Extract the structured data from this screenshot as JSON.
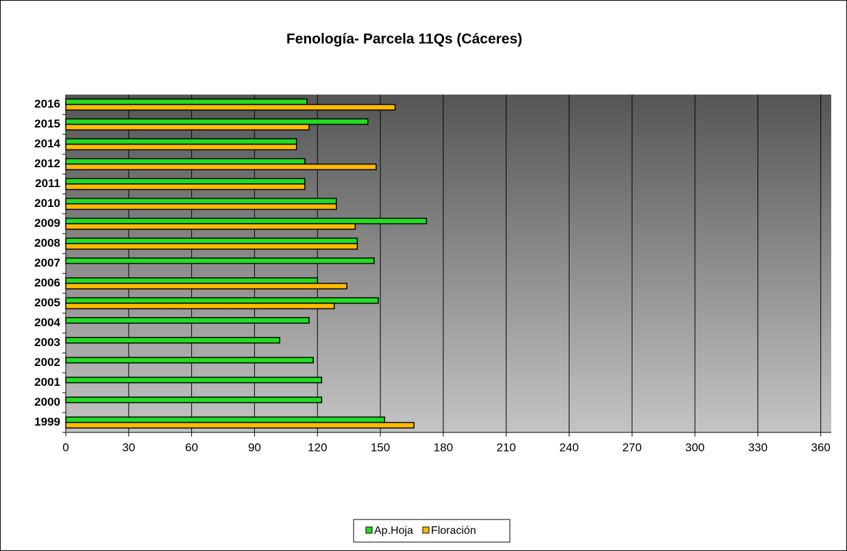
{
  "chart_data": {
    "type": "hbar",
    "title": "Fenología- Parcela 11Qs (Cáceres)",
    "categories": [
      "1999",
      "2000",
      "2001",
      "2002",
      "2003",
      "2004",
      "2005",
      "2006",
      "2007",
      "2008",
      "2009",
      "2010",
      "2011",
      "2012",
      "2014",
      "2015",
      "2016"
    ],
    "series": [
      {
        "name": "Ap.Hoja",
        "color": "#22dd22",
        "values": [
          152,
          122,
          122,
          118,
          102,
          116,
          149,
          120,
          147,
          139,
          172,
          129,
          114,
          114,
          110,
          144,
          115
        ]
      },
      {
        "name": "Floración",
        "color": "#ffbb00",
        "values": [
          166,
          null,
          null,
          null,
          null,
          null,
          128,
          134,
          null,
          139,
          138,
          129,
          114,
          148,
          110,
          116,
          157
        ]
      }
    ],
    "xlim": [
      0,
      365
    ],
    "xticks": [
      0,
      30,
      60,
      90,
      120,
      150,
      180,
      210,
      240,
      270,
      300,
      330,
      360
    ],
    "grid": true,
    "legend": "bottom"
  }
}
